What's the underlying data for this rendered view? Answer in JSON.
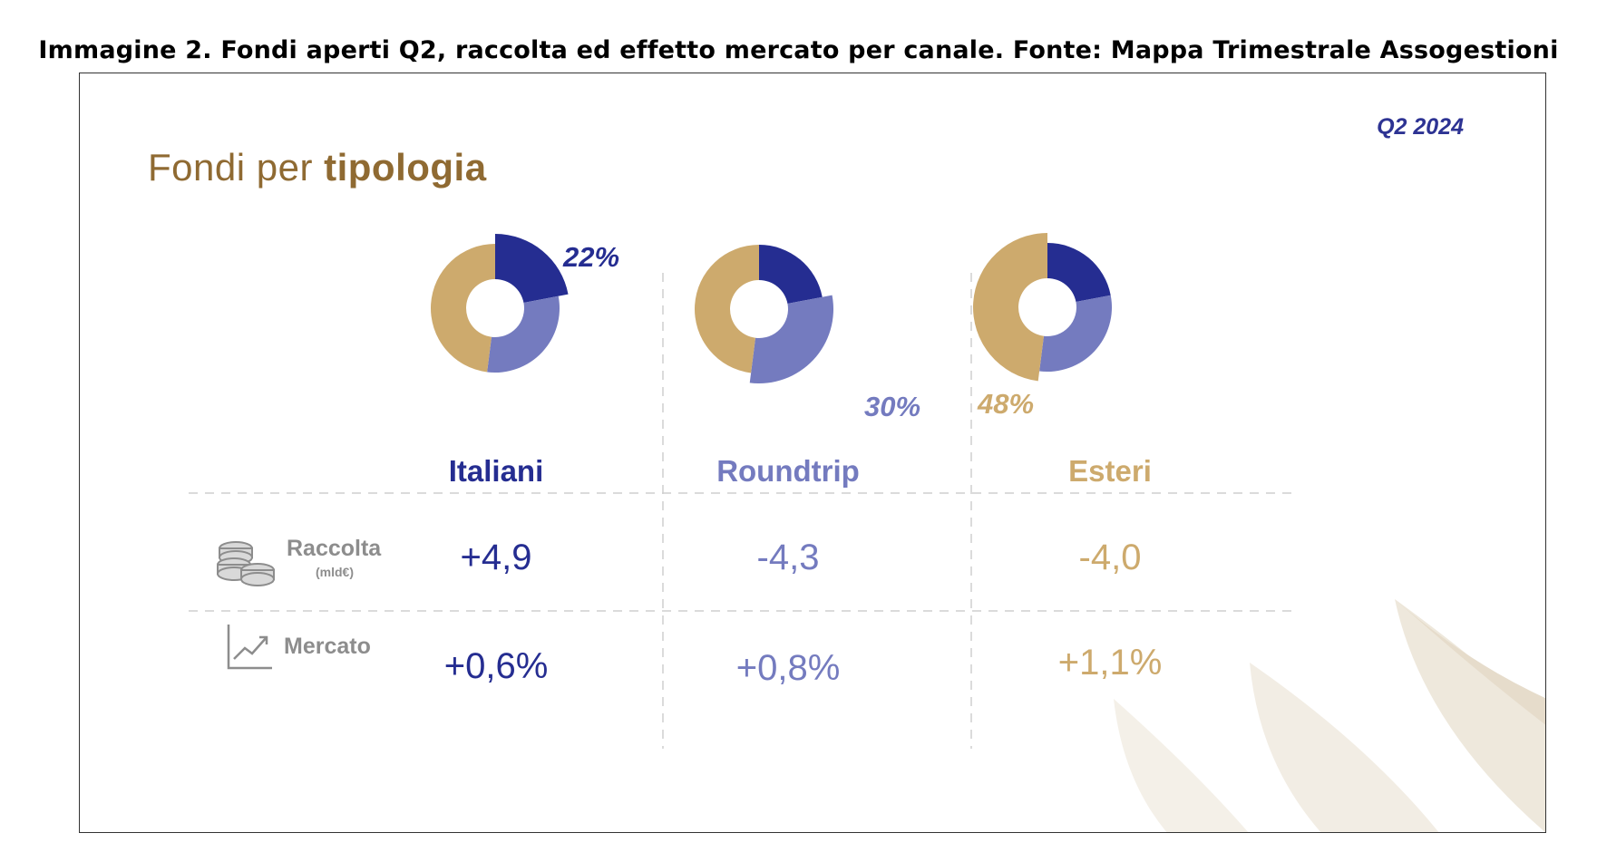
{
  "caption": "Immagine 2. Fondi aperti Q2, raccolta ed effetto mercato per canale. Fonte: Mappa Trimestrale Assogestioni",
  "period": "Q2 2024",
  "heading": {
    "part1": "Fondi per ",
    "part2": "tipologia"
  },
  "colors": {
    "italiani": "#252d91",
    "roundtrip": "#747bbf",
    "esteri": "#cdaa6d",
    "heading": "#8f6a32",
    "label": "#8d8d8d"
  },
  "rows": {
    "raccolta": {
      "label": "Raccolta",
      "unit": "(mld€)",
      "icon": "coins-icon"
    },
    "mercato": {
      "label": "Mercato",
      "icon": "trend-chart-icon"
    }
  },
  "chart_data": {
    "type": "pie",
    "title": "Fondi per tipologia",
    "categories": [
      "Italiani",
      "Roundtrip",
      "Esteri"
    ],
    "shares_percent": [
      22,
      30,
      48
    ],
    "share_labels": [
      "22%",
      "30%",
      "48%"
    ],
    "highlighted_category": [
      "Italiani",
      "Roundtrip",
      "Esteri"
    ],
    "table": {
      "columns": [
        "Italiani",
        "Roundtrip",
        "Esteri"
      ],
      "raccolta_values": [
        4.9,
        -4.3,
        -4.0
      ],
      "raccolta_labels": [
        "+4,9",
        "-4,3",
        "-4,0"
      ],
      "mercato_values": [
        0.6,
        0.8,
        1.1
      ],
      "mercato_labels": [
        "+0,6%",
        "+0,8%",
        "+1,1%"
      ]
    }
  }
}
